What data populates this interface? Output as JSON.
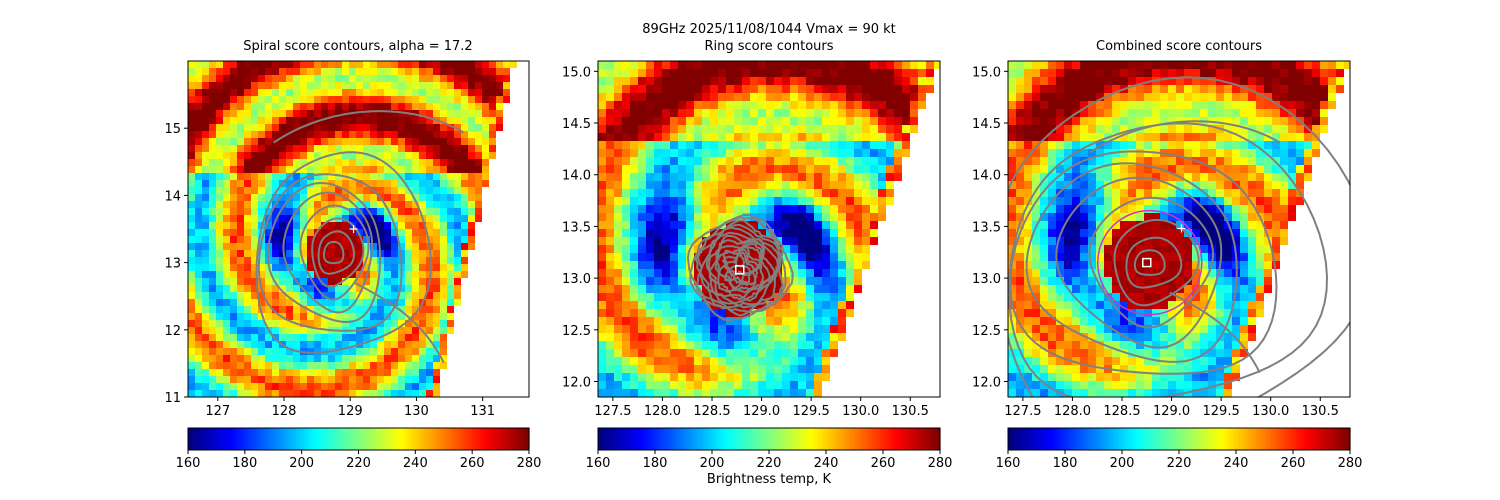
{
  "suptitle": {
    "line1": "89GHz  2025/11/08/1044    Vmax = 90 kt",
    "line2": "Ring score contours"
  },
  "colorbar_label": "Brightness temp, K",
  "colormap": "jet",
  "chart_data": [
    {
      "type": "heatmap",
      "title": "Spiral score contours, alpha = 17.2",
      "xlim": [
        126.55,
        131.7
      ],
      "ylim": [
        11.0,
        16.0
      ],
      "xticks": [
        127,
        128,
        129,
        130,
        131
      ],
      "yticks": [
        11,
        12,
        13,
        14,
        15
      ],
      "swath_edge": [
        [
          130.3,
          11.0
        ],
        [
          131.5,
          16.0
        ]
      ],
      "eye_center": [
        128.75,
        13.15
      ],
      "marker": {
        "shape": "plus",
        "color": "#ffffff",
        "lon": 129.05,
        "lat": 13.5
      },
      "contour_color": "#808080",
      "colorbar": {
        "vmin": 160,
        "vmax": 280,
        "ticks": [
          160,
          180,
          200,
          220,
          240,
          260,
          280
        ]
      }
    },
    {
      "type": "heatmap",
      "title": "Ring score contours",
      "xlim": [
        127.35,
        130.8
      ],
      "ylim": [
        11.85,
        15.1
      ],
      "xticks": [
        127.5,
        128.0,
        128.5,
        129.0,
        129.5,
        130.0,
        130.5
      ],
      "yticks": [
        12.0,
        12.5,
        13.0,
        13.5,
        14.0,
        14.5,
        15.0
      ],
      "swath_edge": [
        [
          129.6,
          11.85
        ],
        [
          130.8,
          15.1
        ]
      ],
      "eye_center": [
        128.78,
        13.1
      ],
      "marker": {
        "shape": "square",
        "color": "#ffffff",
        "lon": 128.78,
        "lat": 13.08
      },
      "contour_color": "#808080",
      "colorbar": {
        "vmin": 160,
        "vmax": 280,
        "ticks": [
          160,
          180,
          200,
          220,
          240,
          260,
          280
        ]
      }
    },
    {
      "type": "heatmap",
      "title": "Combined score contours",
      "xlim": [
        127.35,
        130.8
      ],
      "ylim": [
        11.85,
        15.1
      ],
      "xticks": [
        127.5,
        128.0,
        128.5,
        129.0,
        129.5,
        130.0,
        130.5
      ],
      "yticks": [
        12.0,
        12.5,
        13.0,
        13.5,
        14.0,
        14.5,
        15.0
      ],
      "swath_edge": [
        [
          129.6,
          11.85
        ],
        [
          130.8,
          15.1
        ]
      ],
      "eye_center": [
        128.78,
        13.15
      ],
      "markers": [
        {
          "shape": "square",
          "color": "#ffffff",
          "lon": 128.75,
          "lat": 13.15
        },
        {
          "shape": "plus",
          "color": "#ffffff",
          "lon": 129.1,
          "lat": 13.48
        }
      ],
      "ring_color": "#cc33cc",
      "contour_color": "#808080",
      "colorbar": {
        "vmin": 160,
        "vmax": 280,
        "ticks": [
          160,
          180,
          200,
          220,
          240,
          260,
          280
        ]
      }
    }
  ]
}
